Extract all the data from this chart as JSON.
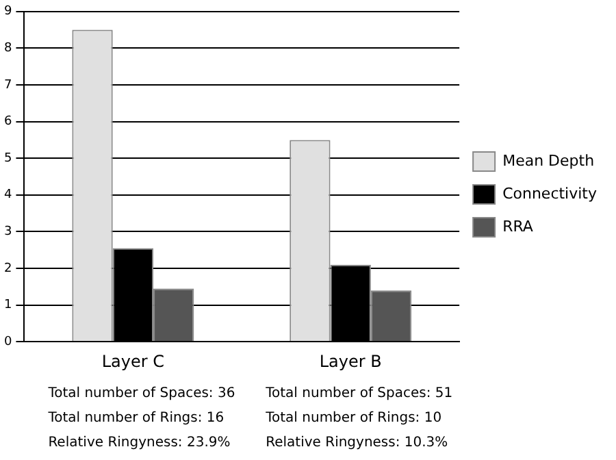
{
  "chart_data": {
    "type": "bar",
    "categories": [
      "Layer C",
      "Layer B"
    ],
    "series": [
      {
        "name": "Mean Depth",
        "color": "#e0e0e0",
        "values": [
          8.5,
          5.5
        ]
      },
      {
        "name": "Connectivity",
        "color": "#000000",
        "values": [
          2.55,
          2.1
        ]
      },
      {
        "name": "RRA",
        "color": "#555555",
        "values": [
          1.45,
          1.4
        ]
      }
    ],
    "ylim": [
      0,
      9
    ],
    "yticks": [
      0,
      1,
      2,
      3,
      4,
      5,
      6,
      7,
      8,
      9
    ],
    "grid": "y",
    "legend": "right",
    "annotations": [
      "Total number of Spaces: 36",
      "Total number of Rings: 16",
      "Relative Ringyness: 23.9%",
      "Total number of Spaces: 51",
      "Total number of Rings: 10",
      "Relative Ringyness: 10.3%"
    ]
  }
}
